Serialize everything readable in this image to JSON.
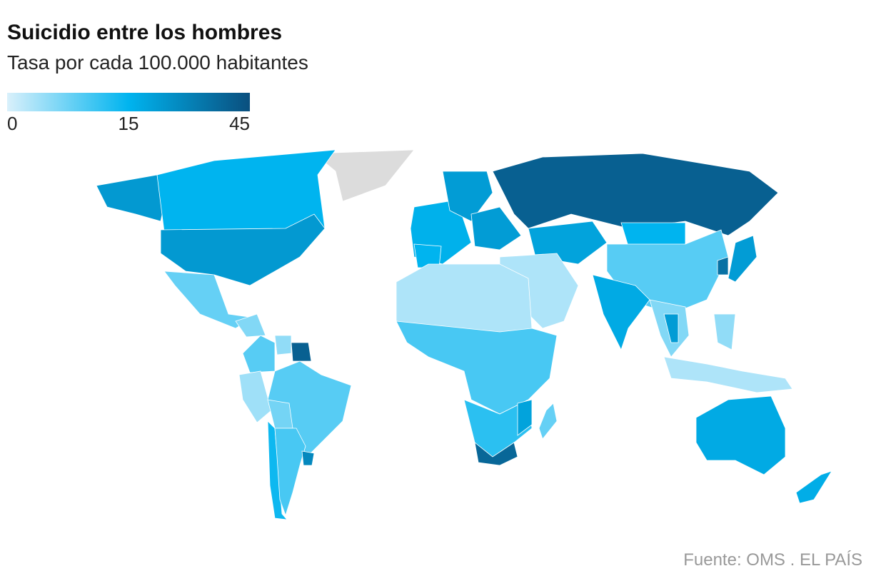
{
  "chart_data": {
    "type": "choropleth",
    "title": "Suicidio entre los hombres",
    "subtitle": "Tasa por cada 100.000 habitantes",
    "source": "Fuente: OMS . EL PAÍS",
    "colorbar": {
      "ticks": [
        0,
        15,
        45
      ],
      "colors": [
        "#d9f0fb",
        "#00b4ef",
        "#0a4f7e"
      ]
    },
    "null_color": "#dcdcdc",
    "values": [
      null,
      23,
      15,
      23,
      8,
      6,
      9,
      5,
      40,
      4,
      9,
      7,
      14,
      10,
      28,
      16,
      15,
      22,
      22,
      40,
      20,
      15,
      9,
      35,
      22,
      3,
      18,
      6,
      22,
      3,
      5,
      3,
      10,
      12,
      38,
      20,
      8,
      18,
      17
    ]
  }
}
